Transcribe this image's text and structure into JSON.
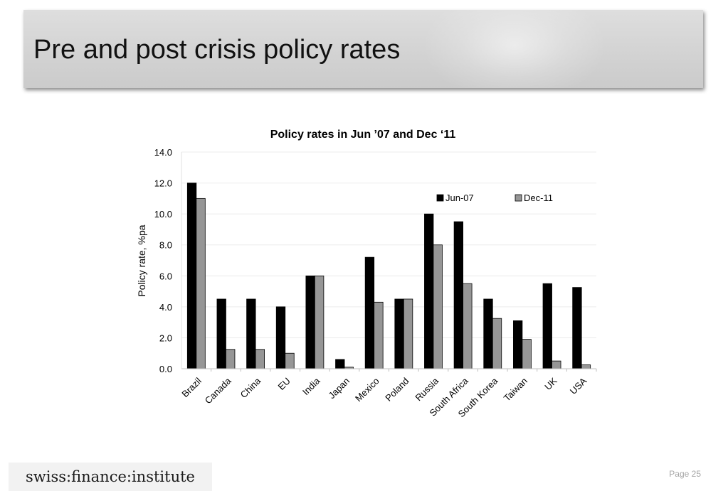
{
  "slide": {
    "title": "Pre and post crisis policy rates",
    "page_label": "Page 25",
    "logo_text": "swiss:finance:institute"
  },
  "colors": {
    "jun07": "#000000",
    "dec11": "#969696",
    "banner": "#d4d4d4"
  },
  "chart_data": {
    "type": "bar",
    "title": "Policy rates in Jun ’07 and Dec ‘11",
    "xlabel": "",
    "ylabel": "Policy rate, %pa",
    "ylim": [
      0,
      14
    ],
    "yticks": [
      "0.0",
      "2.0",
      "4.0",
      "6.0",
      "8.0",
      "10.0",
      "12.0",
      "14.0"
    ],
    "grid": true,
    "legend_position": "top-right",
    "categories": [
      "Brazil",
      "Canada",
      "China",
      "EU",
      "India",
      "Japan",
      "Mexico",
      "Poland",
      "Russia",
      "South Africa",
      "South Korea",
      "Taiwan",
      "UK",
      "USA"
    ],
    "series": [
      {
        "name": "Jun-07",
        "color": "#000000",
        "values": [
          12.0,
          4.5,
          4.5,
          4.0,
          6.0,
          0.6,
          7.2,
          4.5,
          10.0,
          9.5,
          4.5,
          3.1,
          5.5,
          5.25
        ]
      },
      {
        "name": "Dec-11",
        "color": "#969696",
        "values": [
          11.0,
          1.25,
          1.25,
          1.0,
          6.0,
          0.1,
          4.3,
          4.5,
          8.0,
          5.5,
          3.25,
          1.9,
          0.5,
          0.25
        ]
      }
    ]
  }
}
